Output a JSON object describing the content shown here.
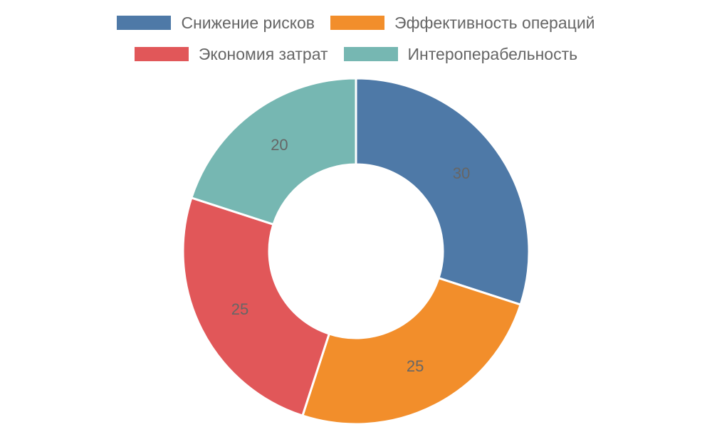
{
  "chart_data": {
    "type": "pie",
    "variant": "doughnut",
    "categories": [
      "Снижение рисков",
      "Эффективность операций",
      "Экономия затрат",
      "Интероперабельность"
    ],
    "values": [
      30,
      25,
      25,
      20
    ],
    "colors": [
      "#4e79a7",
      "#f28e2b",
      "#e15759",
      "#76b7b2"
    ],
    "data_labels": [
      "30",
      "25",
      "25",
      "20"
    ],
    "legend_position": "top"
  }
}
